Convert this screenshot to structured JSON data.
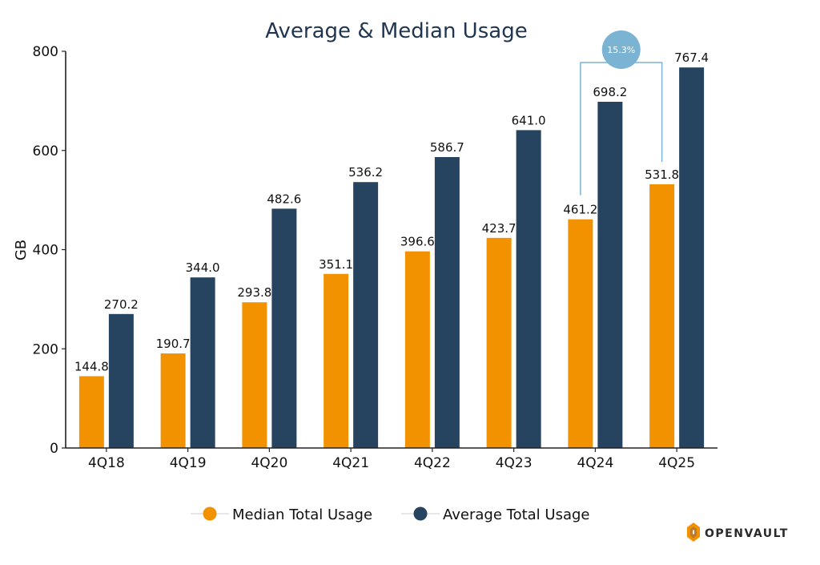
{
  "chart_data": {
    "type": "bar",
    "title": "Average & Median Usage",
    "ylabel": "GB",
    "xlabel": "",
    "ylim": [
      0,
      800
    ],
    "yticks": [
      0,
      200,
      400,
      600,
      800
    ],
    "categories": [
      "4Q18",
      "4Q19",
      "4Q20",
      "4Q21",
      "4Q22",
      "4Q23",
      "4Q24",
      "4Q25"
    ],
    "series": [
      {
        "name": "Median Total Usage",
        "color": "#f39200",
        "values": [
          144.8,
          190.7,
          293.8,
          351.1,
          396.6,
          423.7,
          461.2,
          531.8
        ],
        "labels": [
          "144.8",
          "190.7",
          "293.8",
          "351.1",
          "396.6",
          "423.7",
          "461.2",
          "531.8"
        ]
      },
      {
        "name": "Average Total Usage",
        "color": "#26445f",
        "values": [
          270.2,
          344.0,
          482.6,
          536.2,
          586.7,
          641.0,
          698.2,
          767.4
        ],
        "labels": [
          "270.2",
          "344.0",
          "482.6",
          "536.2",
          "586.7",
          "641.0",
          "698.2",
          "767.4"
        ]
      }
    ],
    "annotation": {
      "text": "15.3%",
      "from_category": "4Q24",
      "to_category": "4Q25",
      "series": "Median Total Usage",
      "color": "#7bb3d3"
    },
    "legend_placement": "bottom-center",
    "grid": false
  },
  "brand": {
    "name": "OpenVault",
    "display": "OPENVAULT",
    "colors": [
      "#f39200",
      "#c0782b"
    ]
  }
}
